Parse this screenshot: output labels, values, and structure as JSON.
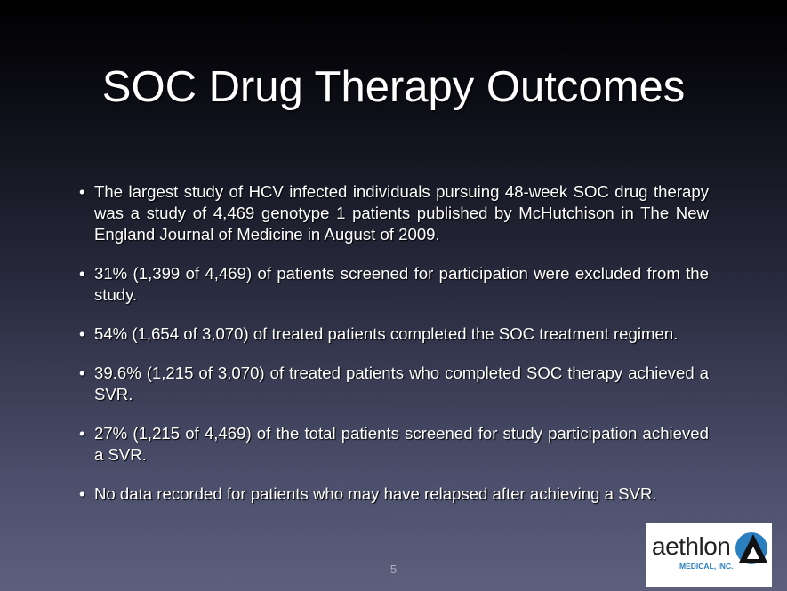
{
  "slide": {
    "title": "SOC Drug Therapy Outcomes",
    "bullets": [
      "The largest study of HCV infected individuals pursuing 48-week SOC drug therapy was a study of 4,469 genotype 1 patients published by McHutchison in The New England Journal of Medicine in August of 2009.",
      "31% (1,399 of 4,469) of patients screened for participation were excluded from the study.",
      "54% (1,654 of 3,070) of treated patients completed the SOC treatment regimen.",
      "39.6% (1,215 of 3,070) of treated patients who completed SOC therapy achieved a SVR.",
      "27% (1,215 of 4,469) of the total patients screened for study participation achieved a SVR.",
      "No data recorded for patients who may have relapsed after achieving a SVR."
    ],
    "page_number": "5",
    "logo": {
      "name": "aethlon",
      "subtitle": "MEDICAL, INC."
    }
  }
}
